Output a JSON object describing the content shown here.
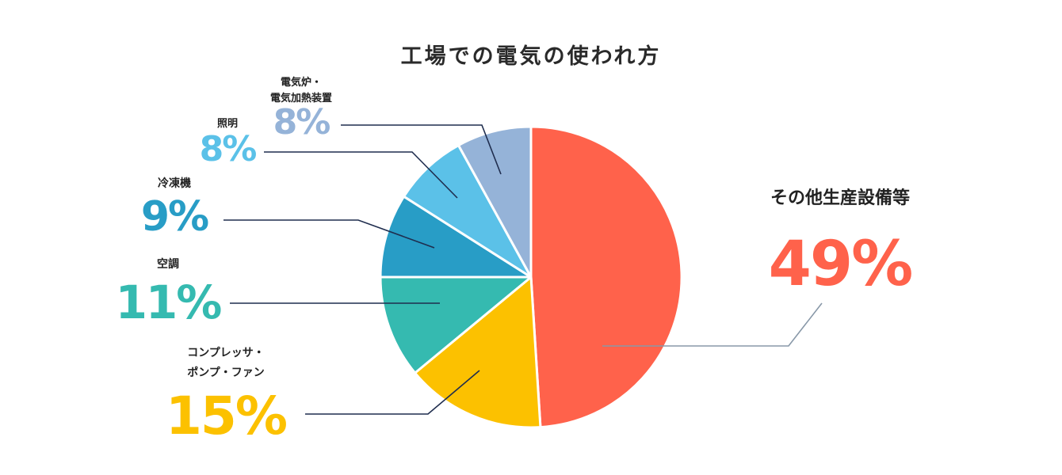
{
  "chart_data": {
    "type": "pie",
    "title": "工場での電気の使われ方",
    "slices": [
      {
        "label": "その他生産設備等",
        "value": 49,
        "display": "49%",
        "color": "#ff624b"
      },
      {
        "label": "コンプレッサ・\nポンプ・ファン",
        "value": 15,
        "display": "15%",
        "color": "#fcc100"
      },
      {
        "label": "空調",
        "value": 11,
        "display": "11%",
        "color": "#35bab0"
      },
      {
        "label": "冷凍機",
        "value": 9,
        "display": "9%",
        "color": "#289dc6"
      },
      {
        "label": "照明",
        "value": 8,
        "display": "8%",
        "color": "#5bc1e8"
      },
      {
        "label": "電気炉・\n電気加熱装置",
        "value": 8,
        "display": "8%",
        "color": "#95b3d8"
      }
    ],
    "leader_color": "#1f2d4e",
    "title_color": "#2a2a2a"
  }
}
